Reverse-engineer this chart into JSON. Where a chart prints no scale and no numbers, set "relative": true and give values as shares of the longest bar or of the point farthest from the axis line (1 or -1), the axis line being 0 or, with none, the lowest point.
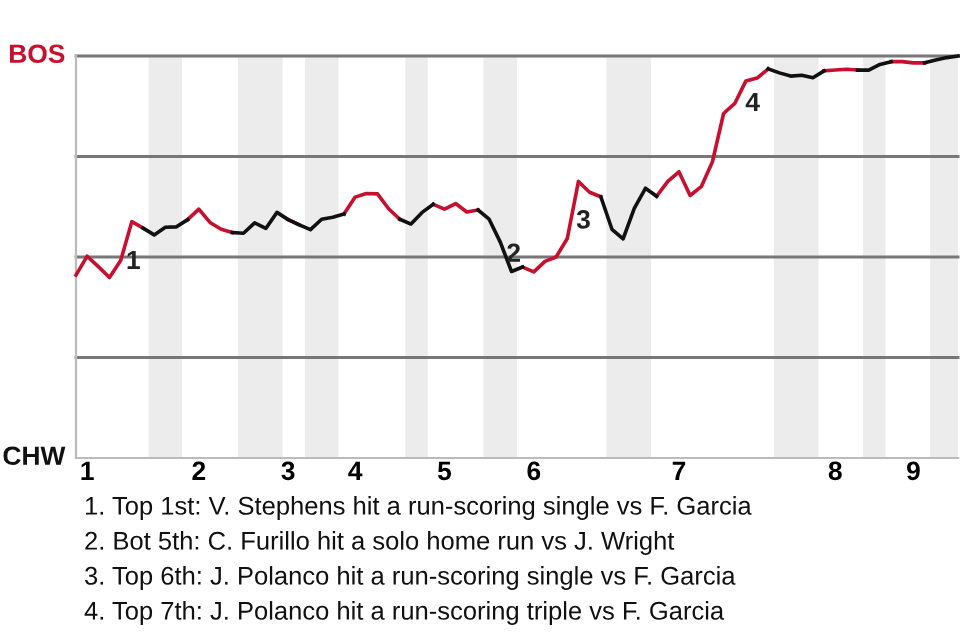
{
  "chart_data": {
    "type": "line",
    "relative": true,
    "categories": [
      null,
      "1",
      null,
      null,
      null,
      null,
      null,
      null,
      null,
      null,
      null,
      "2",
      null,
      null,
      null,
      null,
      null,
      null,
      null,
      "3",
      null,
      null,
      null,
      null,
      null,
      "4",
      null,
      null,
      null,
      null,
      null,
      null,
      null,
      "5",
      null,
      null,
      null,
      null,
      null,
      null,
      null,
      "6",
      null,
      null,
      null,
      null,
      null,
      null,
      null,
      null,
      null,
      null,
      null,
      null,
      "7",
      null,
      null,
      null,
      null,
      null,
      null,
      null,
      null,
      null,
      null,
      null,
      null,
      null,
      "8",
      null,
      null,
      null,
      null,
      null,
      null,
      "9",
      null,
      null,
      null,
      null
    ],
    "series": [
      {
        "color": "#c8102e",
        "values": [
          0.455,
          0.502,
          0.476,
          0.449,
          0.491,
          0.588,
          0.572,
          null,
          null,
          null,
          0.593,
          0.619,
          0.586,
          0.569,
          0.561,
          null,
          null,
          null,
          null,
          0.593,
          0.58,
          null,
          null,
          null,
          0.607,
          0.649,
          0.658,
          0.657,
          0.62,
          0.594,
          null,
          null,
          0.631,
          0.619,
          0.633,
          0.612,
          0.617,
          null,
          null,
          null,
          0.475,
          0.463,
          0.489,
          0.5,
          0.546,
          0.688,
          0.661,
          0.65,
          null,
          null,
          null,
          null,
          0.651,
          0.688,
          0.712,
          0.653,
          0.675,
          0.737,
          0.857,
          0.882,
          0.938,
          0.945,
          0.968,
          null,
          null,
          null,
          null,
          0.963,
          0.965,
          0.967,
          0.965,
          null,
          null,
          0.986,
          0.986,
          0.983,
          0.983,
          null,
          null,
          null
        ]
      },
      {
        "color": "#111111",
        "values": [
          null,
          null,
          null,
          null,
          null,
          null,
          0.572,
          0.555,
          0.574,
          0.575,
          0.593,
          null,
          null,
          null,
          0.561,
          0.559,
          0.585,
          0.571,
          0.611,
          0.593,
          0.58,
          0.568,
          0.594,
          0.599,
          0.607,
          null,
          null,
          null,
          null,
          0.594,
          0.582,
          0.611,
          0.631,
          null,
          null,
          null,
          0.617,
          0.594,
          0.537,
          0.464,
          0.475,
          null,
          null,
          null,
          null,
          null,
          null,
          0.65,
          0.569,
          0.545,
          0.621,
          0.671,
          0.651,
          null,
          null,
          null,
          null,
          null,
          null,
          null,
          null,
          null,
          0.968,
          0.958,
          0.95,
          0.952,
          0.946,
          0.963,
          null,
          null,
          0.965,
          0.965,
          0.979,
          0.986,
          null,
          null,
          0.983,
          0.99,
          0.996,
          1
        ]
      }
    ],
    "ref_lines": [
      {
        "axis": "y",
        "value": 0.25,
        "color": "#777777"
      },
      {
        "axis": "y",
        "value": 0.5,
        "color": "#777777"
      },
      {
        "axis": "y",
        "value": 0.75,
        "color": "#777777"
      },
      {
        "axis": "y",
        "value": 1,
        "color": "#777777"
      }
    ],
    "annotations": [
      "BOS",
      "CHW",
      "1",
      "2",
      "3",
      "4",
      "1. Top 1st: V. Stephens hit a run-scoring single vs F. Garcia",
      "2. Bot 5th: C. Furillo hit a solo home run vs J. Wright",
      "3. Top 6th: J. Polanco hit a run-scoring single vs F. Garcia",
      "4. Top 7th: J. Polanco hit a run-scoring triple vs F. Garcia"
    ],
    "line_style": "solid",
    "marker": "none"
  }
}
